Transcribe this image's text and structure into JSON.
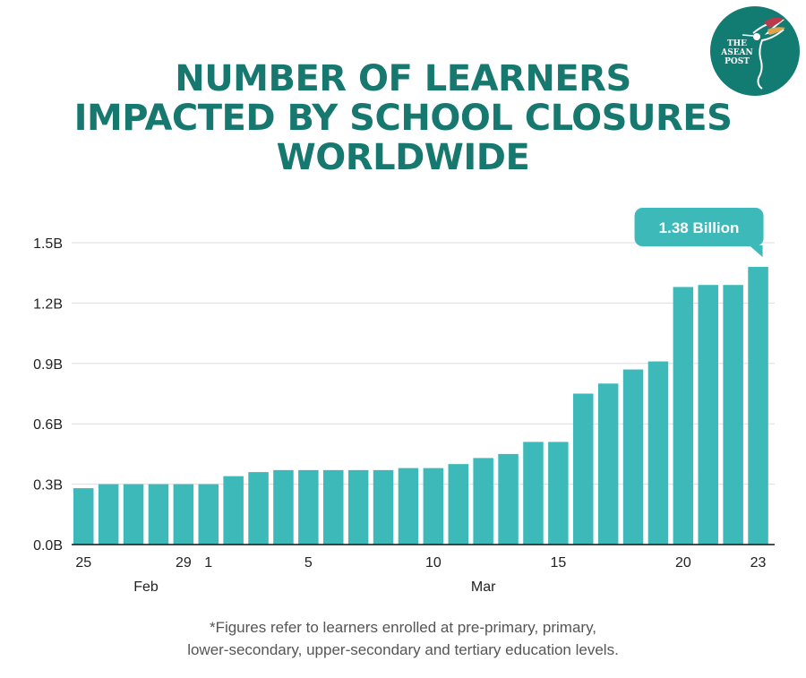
{
  "logo": {
    "line1": "THE",
    "line2": "ASEAN",
    "line3": "POST"
  },
  "title_lines": [
    "NUMBER OF LEARNERS",
    "IMPACTED BY SCHOOL CLOSURES",
    "WORLDWIDE"
  ],
  "footnote_lines": [
    "*Figures refer to learners enrolled at pre-primary, primary,",
    "lower-secondary, upper-secondary and tertiary education levels."
  ],
  "colors": {
    "accent": "#3db9b9",
    "title": "#17786f",
    "logo_bg": "#137c72"
  },
  "chart_data": {
    "type": "bar",
    "categories": [
      "Feb 25",
      "Feb 26",
      "Feb 27",
      "Feb 28",
      "Feb 29",
      "Mar 1",
      "Mar 2",
      "Mar 3",
      "Mar 4",
      "Mar 5",
      "Mar 6",
      "Mar 7",
      "Mar 8",
      "Mar 9",
      "Mar 10",
      "Mar 11",
      "Mar 12",
      "Mar 13",
      "Mar 14",
      "Mar 15",
      "Mar 16",
      "Mar 17",
      "Mar 18",
      "Mar 19",
      "Mar 20",
      "Mar 21",
      "Mar 22",
      "Mar 23"
    ],
    "values": [
      0.28,
      0.3,
      0.3,
      0.3,
      0.3,
      0.3,
      0.34,
      0.36,
      0.37,
      0.37,
      0.37,
      0.37,
      0.37,
      0.38,
      0.38,
      0.4,
      0.43,
      0.45,
      0.51,
      0.51,
      0.75,
      0.8,
      0.87,
      0.91,
      1.28,
      1.29,
      1.29,
      1.38
    ],
    "unit": "B",
    "ylim": [
      0,
      1.5
    ],
    "yticks": [
      "0.0B",
      "0.3B",
      "0.6B",
      "0.9B",
      "1.2B",
      "1.5B"
    ],
    "ytick_values": [
      0,
      0.3,
      0.6,
      0.9,
      1.2,
      1.5
    ],
    "xtick_labels": [
      {
        "index": 0,
        "label": "25"
      },
      {
        "index": 4,
        "label": "29"
      },
      {
        "index": 5,
        "label": "1"
      },
      {
        "index": 9,
        "label": "5"
      },
      {
        "index": 14,
        "label": "10"
      },
      {
        "index": 19,
        "label": "15"
      },
      {
        "index": 24,
        "label": "20"
      },
      {
        "index": 27,
        "label": "23"
      }
    ],
    "month_labels": [
      {
        "center_index": 2.5,
        "label": "Feb"
      },
      {
        "center_index": 16,
        "label": "Mar"
      }
    ],
    "callout": {
      "index": 27,
      "label": "1.38 Billion"
    },
    "grid": true
  }
}
